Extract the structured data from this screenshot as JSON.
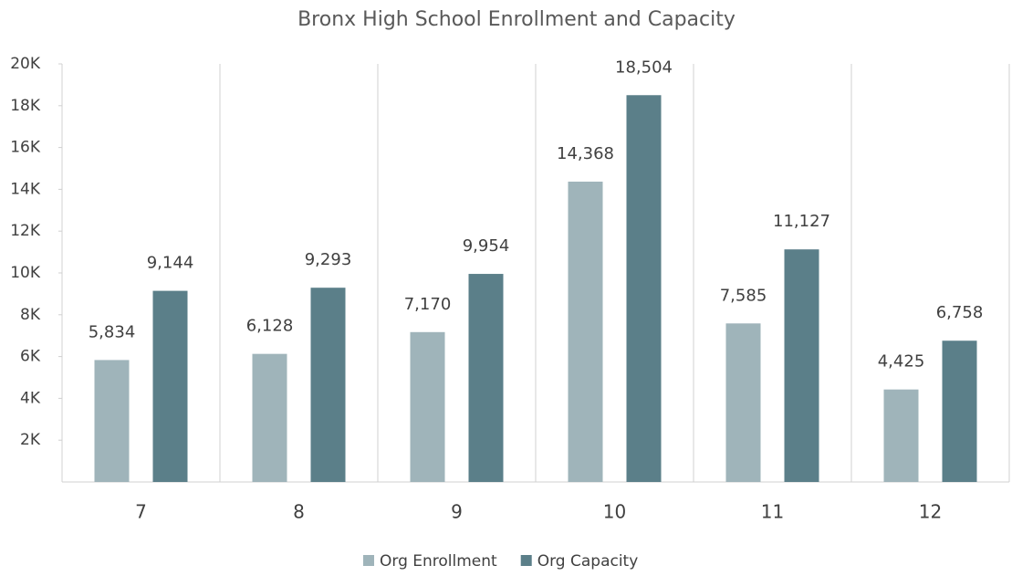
{
  "chart_data": {
    "type": "bar",
    "title": "Bronx High School Enrollment and Capacity",
    "categories": [
      "7",
      "8",
      "9",
      "10",
      "11",
      "12"
    ],
    "series": [
      {
        "name": "Org Enrollment",
        "color": "#9fb4ba",
        "values": [
          5834,
          6128,
          7170,
          14368,
          7585,
          4425
        ],
        "value_labels": [
          "5,834",
          "6,128",
          "7,170",
          "14,368",
          "7,585",
          "4,425"
        ]
      },
      {
        "name": "Org Capacity",
        "color": "#5b7f89",
        "values": [
          9144,
          9293,
          9954,
          18504,
          11127,
          6758
        ],
        "value_labels": [
          "9,144",
          "9,293",
          "9,954",
          "18,504",
          "11,127",
          "6,758"
        ]
      }
    ],
    "ylim": [
      0,
      20000
    ],
    "yticks": [
      {
        "value": 2000,
        "label": "2K"
      },
      {
        "value": 4000,
        "label": "4K"
      },
      {
        "value": 6000,
        "label": "6K"
      },
      {
        "value": 8000,
        "label": "8K"
      },
      {
        "value": 10000,
        "label": "10K"
      },
      {
        "value": 12000,
        "label": "12K"
      },
      {
        "value": 14000,
        "label": "14K"
      },
      {
        "value": 16000,
        "label": "16K"
      },
      {
        "value": 18000,
        "label": "18K"
      },
      {
        "value": 20000,
        "label": "20K"
      }
    ],
    "legend": "bottom"
  }
}
